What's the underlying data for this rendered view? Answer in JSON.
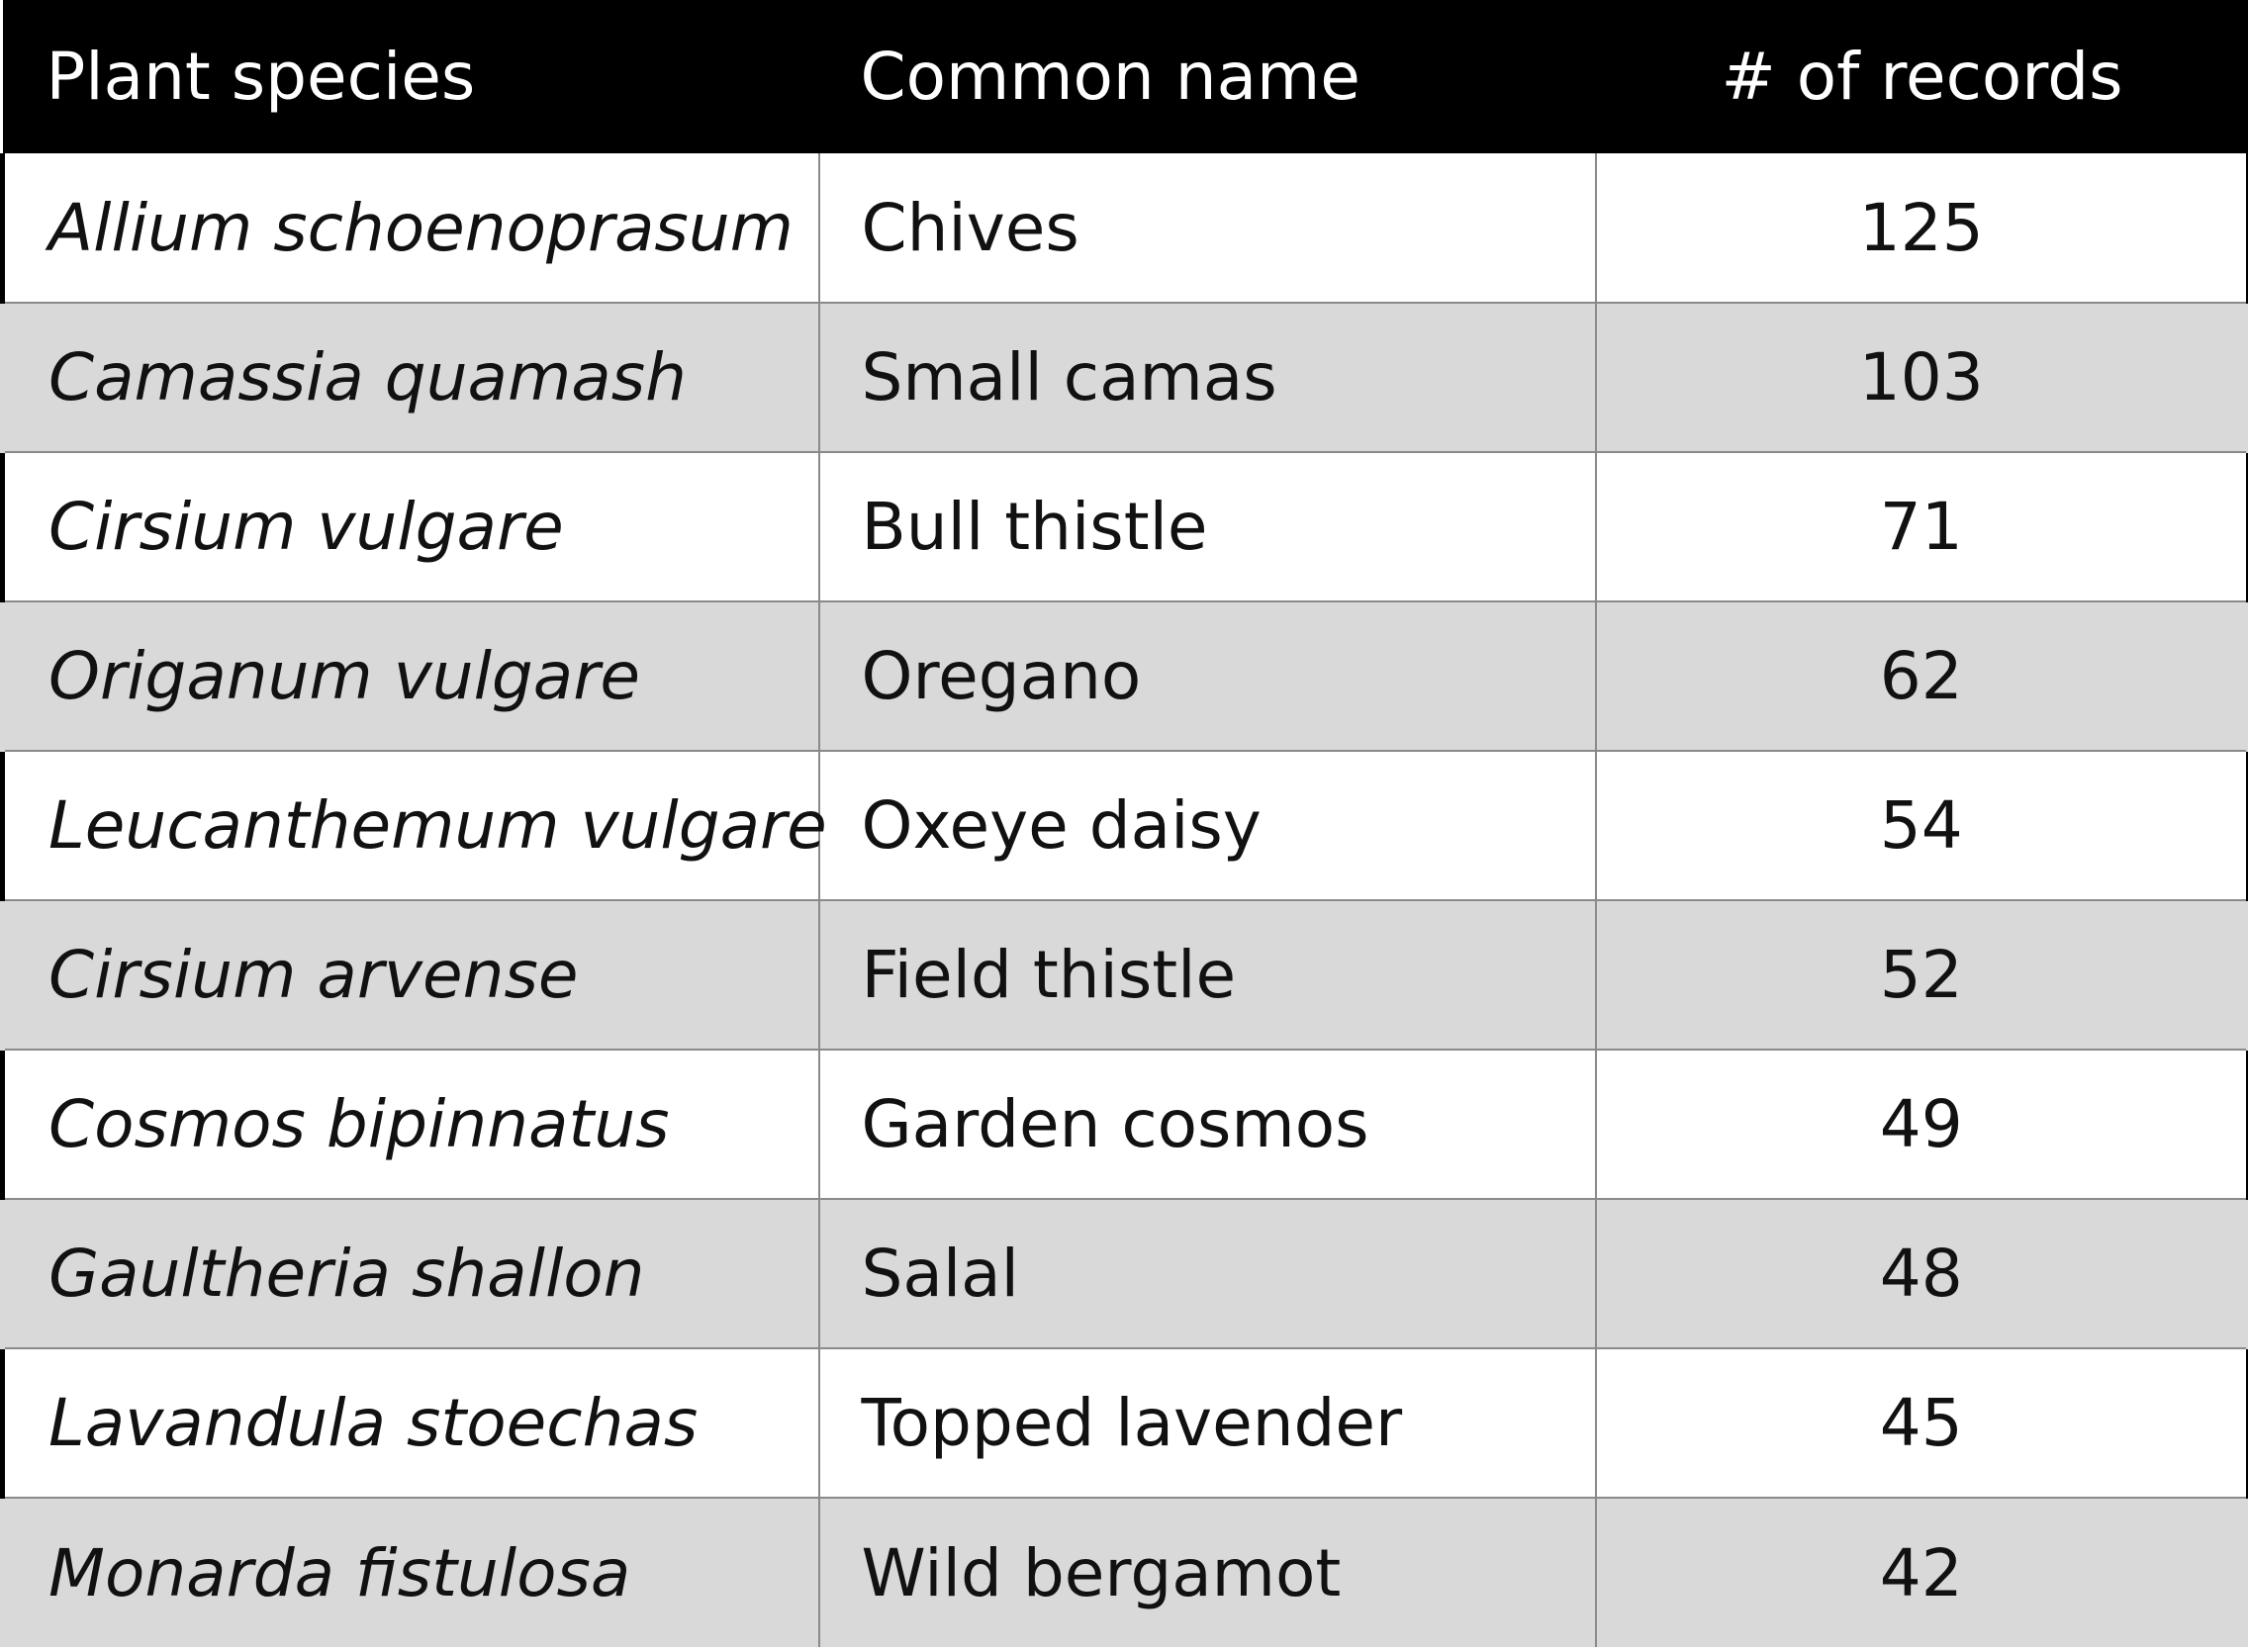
{
  "table": {
    "headers": {
      "species": "Plant species",
      "common": "Common name",
      "records": "# of records"
    },
    "rows": [
      {
        "species": "Allium schoenoprasum",
        "common": "Chives",
        "records": "125"
      },
      {
        "species": "Camassia quamash",
        "common": "Small camas",
        "records": "103"
      },
      {
        "species": "Cirsium vulgare",
        "common": "Bull thistle",
        "records": "71"
      },
      {
        "species": "Origanum vulgare",
        "common": "Oregano",
        "records": "62"
      },
      {
        "species": "Leucanthemum vulgare",
        "common": "Oxeye daisy",
        "records": "54"
      },
      {
        "species": "Cirsium arvense",
        "common": "Field thistle",
        "records": "52"
      },
      {
        "species": "Cosmos bipinnatus",
        "common": "Garden cosmos",
        "records": "49"
      },
      {
        "species": "Gaultheria shallon",
        "common": "Salal",
        "records": "48"
      },
      {
        "species": "Lavandula stoechas",
        "common": "Topped lavender",
        "records": "45"
      },
      {
        "species": "Monarda fistulosa",
        "common": "Wild bergamot",
        "records": "42"
      }
    ]
  },
  "colors": {
    "header_bg": "#000000",
    "header_text": "#ffffff",
    "row_stripe": "#d9d9d9",
    "row_plain": "#ffffff",
    "grid_line": "#8a8a8a"
  }
}
